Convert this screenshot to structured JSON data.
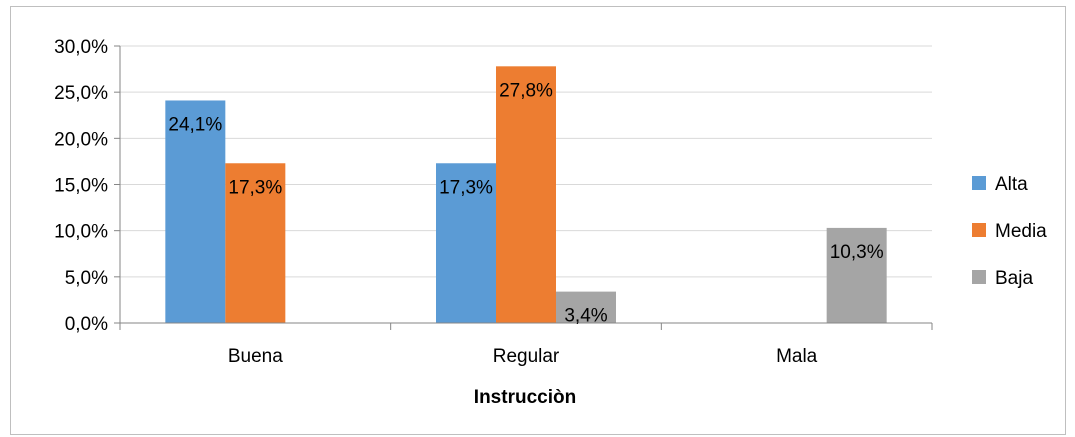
{
  "chart_data": {
    "type": "bar",
    "categories": [
      "Buena",
      "Regular",
      "Mala"
    ],
    "series": [
      {
        "name": "Alta",
        "values": [
          24.1,
          17.3,
          null
        ],
        "labels": [
          "24,1%",
          "17,3%",
          ""
        ],
        "color": "#5b9bd5"
      },
      {
        "name": "Media",
        "values": [
          17.3,
          27.8,
          null
        ],
        "labels": [
          "17,3%",
          "27,8%",
          ""
        ],
        "color": "#ed7d31"
      },
      {
        "name": "Baja",
        "values": [
          null,
          3.4,
          10.3
        ],
        "labels": [
          "",
          "3,4%",
          "10,3%"
        ],
        "color": "#a5a5a5"
      }
    ],
    "xlabel": "Instrucciòn",
    "ylabel": "",
    "ylim": [
      0,
      30
    ],
    "yticks": [
      0,
      5,
      10,
      15,
      20,
      25,
      30
    ],
    "ytick_labels": [
      "0,0%",
      "5,0%",
      "10,0%",
      "15,0%",
      "20,0%",
      "25,0%",
      "30,0%"
    ],
    "grid": true,
    "legend_position": "right"
  }
}
